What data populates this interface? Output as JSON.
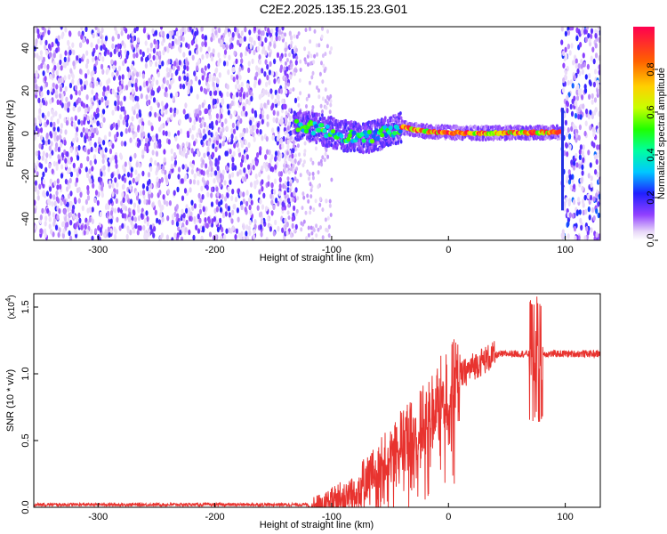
{
  "title": "C2E2.2025.135.15.23.G01",
  "chart_data": [
    {
      "type": "heatmap",
      "xlabel": "Height of straight line (km)",
      "ylabel": "Frequency (Hz)",
      "xlim": [
        -355,
        130
      ],
      "ylim": [
        -50,
        50
      ],
      "xticks": [
        -300,
        -200,
        -100,
        0,
        100
      ],
      "xtick_labels": [
        "-300",
        "-200",
        "-100",
        "0",
        "100"
      ],
      "yticks": [
        -40,
        -20,
        0,
        20,
        40
      ],
      "ytick_labels": [
        "-40",
        "-20",
        "0",
        "20",
        "40"
      ],
      "colorbar": {
        "label": "Normalized spectral amplitude",
        "range": [
          0,
          1
        ],
        "ticks": [
          0.0,
          0.2,
          0.4,
          0.6,
          0.8
        ],
        "tick_labels": [
          "0.0",
          "0.2",
          "0.4",
          "0.6",
          "0.8"
        ]
      },
      "regions": [
        {
          "x": [
            -355,
            -130
          ],
          "f": [
            -50,
            50
          ],
          "amplitude": 0.15,
          "description_type": "broadband noise"
        },
        {
          "x": [
            -130,
            -40
          ],
          "f": [
            -5,
            8
          ],
          "amplitude": 0.35,
          "description_type": "signal track"
        },
        {
          "x": [
            -40,
            97
          ],
          "f": [
            -2,
            3
          ],
          "amplitude": 0.85,
          "description_type": "signal track"
        },
        {
          "x": [
            97,
            130
          ],
          "f": [
            -50,
            50
          ],
          "amplitude": 0.2,
          "description_type": "broadband noise"
        }
      ],
      "signal_track": {
        "x": [
          -130,
          -110,
          -90,
          -70,
          -50,
          -40,
          -30,
          -20,
          0,
          20,
          40,
          60,
          80,
          96
        ],
        "f": [
          4,
          2,
          -1,
          -2,
          1,
          3,
          2,
          1,
          0.5,
          0.2,
          0.2,
          0.3,
          0.5,
          0.5
        ]
      }
    },
    {
      "type": "line",
      "xlabel": "Height of straight line (km)",
      "ylabel": "SNR (10 * v/v)",
      "y_multiplier_label": "(x10",
      "y_multiplier_exp": "4",
      "xlim": [
        -355,
        130
      ],
      "ylim": [
        0,
        1.6
      ],
      "xticks": [
        -300,
        -200,
        -100,
        0,
        100
      ],
      "xtick_labels": [
        "-300",
        "-200",
        "-100",
        "0",
        "100"
      ],
      "yticks": [
        0.0,
        0.5,
        1.0,
        1.5
      ],
      "ytick_labels": [
        "0.0",
        "0.5",
        "1.0",
        "1.5"
      ],
      "color": "#e8332f",
      "series": [
        {
          "x": [
            -355,
            -300,
            -250,
            -200,
            -150,
            -120,
            -110,
            -100,
            -90,
            -80,
            -70,
            -60,
            -50,
            -40,
            -30,
            -20,
            -10,
            0,
            10,
            20,
            30,
            40,
            50,
            60,
            70,
            75,
            80,
            90,
            100,
            110,
            120,
            130
          ],
          "y": [
            0.02,
            0.02,
            0.02,
            0.02,
            0.02,
            0.02,
            0.03,
            0.06,
            0.1,
            0.15,
            0.22,
            0.3,
            0.4,
            0.5,
            0.55,
            0.65,
            0.78,
            0.88,
            0.98,
            1.05,
            1.1,
            1.14,
            1.15,
            1.15,
            1.15,
            1.12,
            1.15,
            1.15,
            1.15,
            1.15,
            1.15,
            1.15
          ]
        }
      ],
      "spikes": [
        {
          "x": 75,
          "y_max": 1.58,
          "y_min": 0.62
        }
      ]
    }
  ]
}
